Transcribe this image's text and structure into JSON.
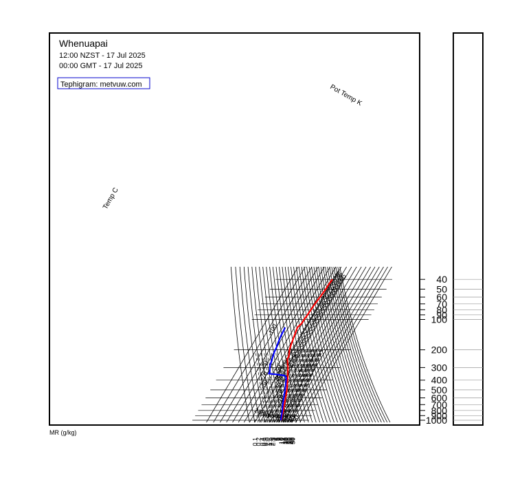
{
  "chart_data": {
    "type": "line",
    "title": "Whenuapai",
    "subtitle_local": "12:00 NZST - 17 Jul 2025",
    "subtitle_gmt": "00:00 GMT - 17 Jul 2025",
    "credit": "Tephigram: metvuw.com",
    "chart_kind": "tephigram",
    "grid": true,
    "pressure_axis": {
      "scale": "log",
      "ticks": [
        40,
        50,
        60,
        70,
        80,
        90,
        100,
        200,
        300,
        400,
        500,
        600,
        700,
        800,
        900,
        1000
      ]
    },
    "mixing_ratio_axis": {
      "label": "MR (g/kg)",
      "ticks": [
        "0.1",
        "0.2",
        "0.4",
        "0.6",
        "0.8",
        "1.0",
        "1.5",
        "2.0",
        "2.5",
        "3",
        "4",
        "5",
        "6",
        "7",
        "8",
        "10",
        "12",
        "14",
        "16",
        "18",
        "20",
        "25",
        "30",
        "35",
        "40",
        "45",
        "50"
      ]
    },
    "temperature_axis": {
      "label": "Temp C",
      "ticks": [
        "-100",
        "-80",
        "-70",
        "-60",
        "-50",
        "-40",
        "-30",
        "-20",
        "-10",
        "0",
        "10",
        "20",
        "30",
        "40",
        "50"
      ]
    },
    "theta_axis": {
      "label": "Pot Temp K",
      "ticks": [
        240,
        250,
        260,
        270,
        280,
        290,
        300,
        310,
        320,
        330,
        340,
        350,
        360,
        370,
        380,
        390,
        400,
        410,
        420,
        430,
        440,
        450,
        460,
        470,
        480,
        490,
        500,
        510,
        520,
        530,
        540,
        550,
        560,
        570,
        580,
        590
      ]
    },
    "series": [
      {
        "key": "temperature",
        "color": "#ff0000",
        "points": [
          {
            "p": 1000,
            "t": 13.5
          },
          {
            "p": 950,
            "t": 11.0
          },
          {
            "p": 900,
            "t": 8.6
          },
          {
            "p": 850,
            "t": 6.8
          },
          {
            "p": 800,
            "t": 4.8
          },
          {
            "p": 750,
            "t": 2.0
          },
          {
            "p": 700,
            "t": -0.6
          },
          {
            "p": 650,
            "t": -3.5
          },
          {
            "p": 600,
            "t": -6.8
          },
          {
            "p": 550,
            "t": -10.0
          },
          {
            "p": 500,
            "t": -14.0
          },
          {
            "p": 450,
            "t": -18.8
          },
          {
            "p": 400,
            "t": -24.3
          },
          {
            "p": 370,
            "t": -28.0
          },
          {
            "p": 350,
            "t": -31.0
          },
          {
            "p": 330,
            "t": -34.0
          },
          {
            "p": 300,
            "t": -38.2
          },
          {
            "p": 280,
            "t": -42.4
          },
          {
            "p": 260,
            "t": -46.2
          },
          {
            "p": 250,
            "t": -48.7
          },
          {
            "p": 230,
            "t": -49.6
          },
          {
            "p": 200,
            "t": -55.2
          },
          {
            "p": 180,
            "t": -57.7
          },
          {
            "p": 170,
            "t": -58.6
          },
          {
            "p": 150,
            "t": -60.8
          },
          {
            "p": 130,
            "t": -63.4
          },
          {
            "p": 120,
            "t": -64.8
          },
          {
            "p": 110,
            "t": -61.4
          },
          {
            "p": 100,
            "t": -61.2
          },
          {
            "p": 90,
            "t": -60.0
          },
          {
            "p": 80,
            "t": -59.2
          },
          {
            "p": 70,
            "t": -58.3
          },
          {
            "p": 60,
            "t": -56.3
          },
          {
            "p": 50,
            "t": -54.3
          },
          {
            "p": 45,
            "t": -54.0
          },
          {
            "p": 40,
            "t": -52.7
          }
        ]
      },
      {
        "key": "dewpoint",
        "color": "#0000ff",
        "points": [
          {
            "p": 1000,
            "t": 12.3
          },
          {
            "p": 950,
            "t": 9.4
          },
          {
            "p": 900,
            "t": 7.5
          },
          {
            "p": 850,
            "t": 5.0
          },
          {
            "p": 800,
            "t": 2.2
          },
          {
            "p": 750,
            "t": -1.0
          },
          {
            "p": 700,
            "t": -4.2
          },
          {
            "p": 650,
            "t": -7.3
          },
          {
            "p": 600,
            "t": -10.5
          },
          {
            "p": 550,
            "t": -14.2
          },
          {
            "p": 500,
            "t": -17.7
          },
          {
            "p": 450,
            "t": -22.2
          },
          {
            "p": 400,
            "t": -27.4
          },
          {
            "p": 380,
            "t": -29.6
          },
          {
            "p": 360,
            "t": -35.6
          },
          {
            "p": 350,
            "t": -54.6
          },
          {
            "p": 345,
            "t": -67.2
          },
          {
            "p": 330,
            "t": -67.4
          },
          {
            "p": 300,
            "t": -71.6
          },
          {
            "p": 280,
            "t": -74.0
          },
          {
            "p": 260,
            "t": -75.0
          },
          {
            "p": 250,
            "t": -76.2
          },
          {
            "p": 230,
            "t": -77.8
          },
          {
            "p": 210,
            "t": -79.6
          },
          {
            "p": 190,
            "t": -80.4
          },
          {
            "p": 170,
            "t": -82.3
          },
          {
            "p": 150,
            "t": -84.2
          },
          {
            "p": 130,
            "t": -85.2
          },
          {
            "p": 120,
            "t": -85.6
          }
        ]
      }
    ]
  }
}
